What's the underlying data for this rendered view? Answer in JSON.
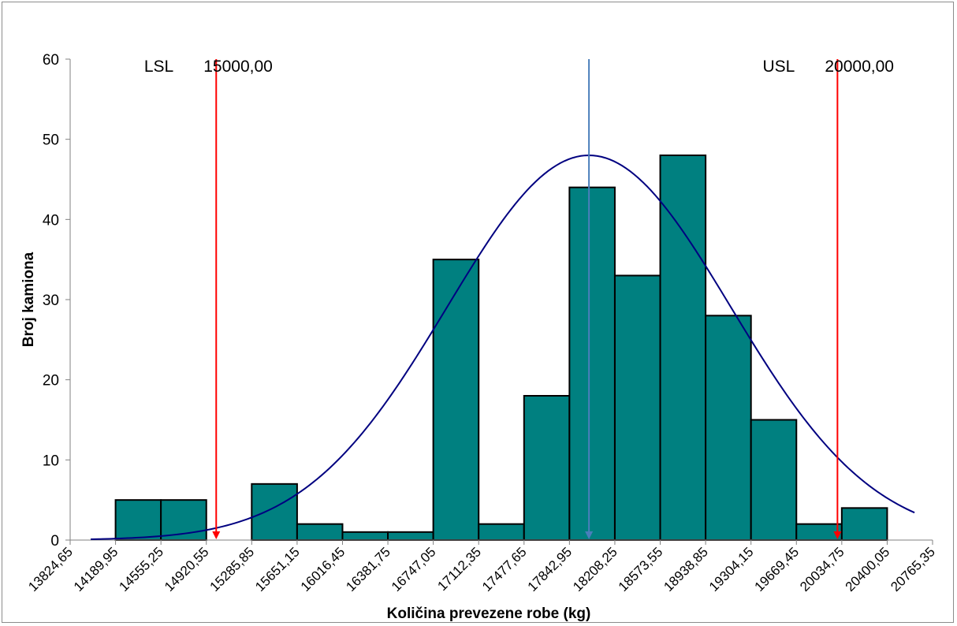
{
  "chart_data": {
    "type": "bar",
    "title": "",
    "xlabel": "Količina prevezene robe (kg)",
    "ylabel": "Broj kamiona",
    "ylim": [
      0,
      60
    ],
    "yticks": [
      0,
      10,
      20,
      30,
      40,
      50,
      60
    ],
    "x_tick_labels": [
      "13824,65",
      "14189,95",
      "14555,25",
      "14920,55",
      "15285,85",
      "15651,15",
      "16016,45",
      "16381,75",
      "16747,05",
      "17112,35",
      "17477,65",
      "17842,95",
      "18208,25",
      "18573,55",
      "18938,85",
      "19304,15",
      "19669,45",
      "20034,75",
      "20400,05",
      "20765,35"
    ],
    "x_ticks": [
      13824.65,
      14189.95,
      14555.25,
      14920.55,
      15285.85,
      15651.15,
      16016.45,
      16381.75,
      16747.05,
      17112.35,
      17477.65,
      17842.95,
      18208.25,
      18573.55,
      18938.85,
      19304.15,
      19669.45,
      20034.75,
      20400.05,
      20765.35
    ],
    "bins": [
      {
        "from": 14189.95,
        "to": 14555.25,
        "value": 5
      },
      {
        "from": 14555.25,
        "to": 14920.55,
        "value": 5
      },
      {
        "from": 15285.85,
        "to": 15651.15,
        "value": 7
      },
      {
        "from": 15651.15,
        "to": 16016.45,
        "value": 2
      },
      {
        "from": 16016.45,
        "to": 16381.75,
        "value": 1
      },
      {
        "from": 16381.75,
        "to": 16747.05,
        "value": 1
      },
      {
        "from": 16747.05,
        "to": 17112.35,
        "value": 35
      },
      {
        "from": 17112.35,
        "to": 17477.65,
        "value": 2
      },
      {
        "from": 17477.65,
        "to": 17842.95,
        "value": 18
      },
      {
        "from": 17842.95,
        "to": 18208.25,
        "value": 44
      },
      {
        "from": 18208.25,
        "to": 18573.55,
        "value": 33
      },
      {
        "from": 18573.55,
        "to": 18938.85,
        "value": 48
      },
      {
        "from": 18938.85,
        "to": 19304.15,
        "value": 28
      },
      {
        "from": 19304.15,
        "to": 19669.45,
        "value": 15
      },
      {
        "from": 19669.45,
        "to": 20034.75,
        "value": 2
      },
      {
        "from": 20034.75,
        "to": 20400.05,
        "value": 4
      }
    ],
    "normal_curve": {
      "mean": 18000,
      "sd": 1140,
      "peak": 48,
      "x_from": 13990,
      "x_to": 20620
    },
    "limits": [
      {
        "name": "LSL",
        "label": "LSL",
        "value_text": "15000,00",
        "x": 15000
      },
      {
        "name": "USL",
        "label": "USL",
        "value_text": "20000,00",
        "x": 20000
      }
    ],
    "mean_line": {
      "x": 18000
    },
    "colors": {
      "bar_fill": "#008080",
      "bar_stroke": "#000000",
      "curve": "#000080",
      "limit": "#ff0000",
      "mean": "#4a7ebb"
    },
    "grid": false,
    "legend": "none"
  }
}
